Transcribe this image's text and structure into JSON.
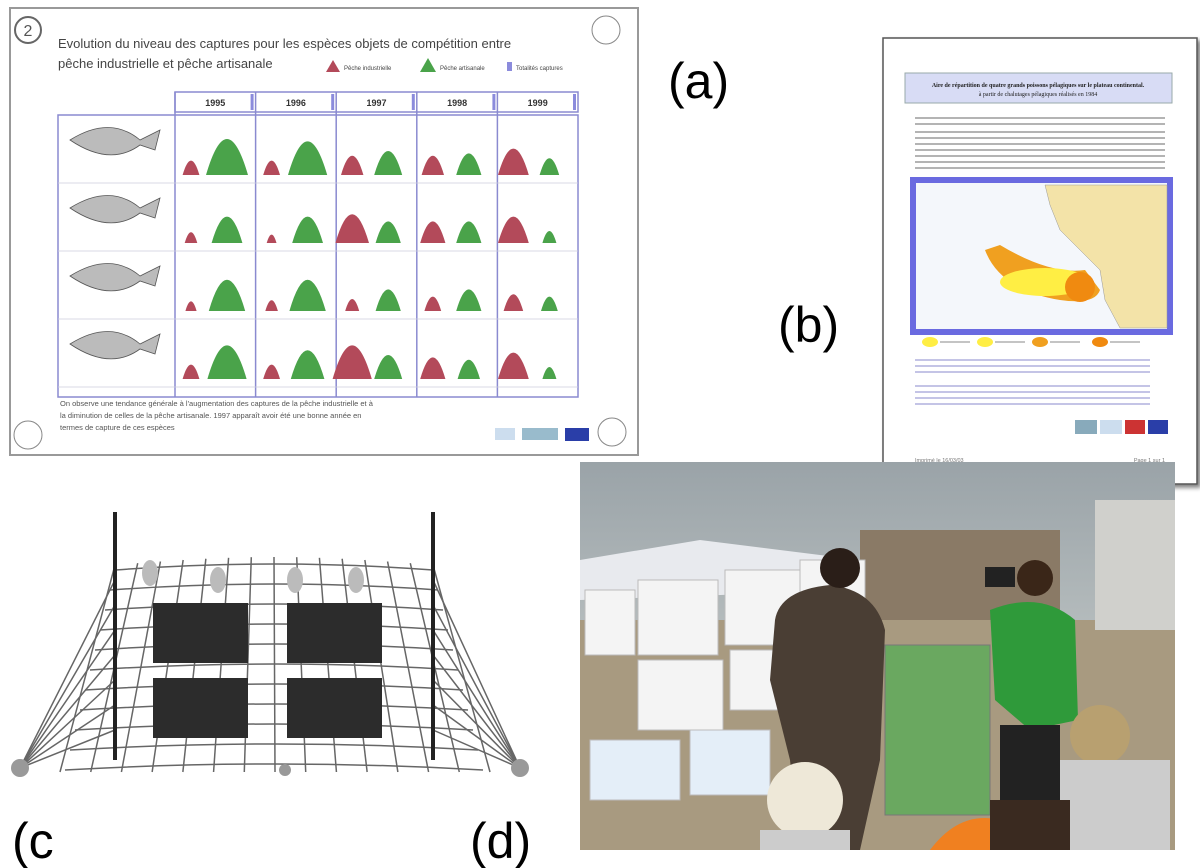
{
  "labels": {
    "a": "(a)",
    "b": "(b)",
    "c": "(c",
    "d": "(d)"
  },
  "panel_a": {
    "number": "2",
    "title_line1": "Evolution du niveau des captures pour les espèces objets de compétition entre",
    "title_line2": "pêche industrielle et pêche artisanale",
    "legend": [
      "Pêche industrielle",
      "Pêche artisanale",
      "Totalités captures"
    ],
    "years": [
      "1995",
      "1996",
      "1997",
      "1998",
      "1999"
    ],
    "caption": [
      "On observe une tendance générale à l'augmentation des captures de la pêche industrielle et à",
      "la diminution de celles de la pêche artisanale. 1997 apparaît avoir été une bonne année en",
      "termes de capture de ces espèces"
    ]
  },
  "panel_b": {
    "title": "Aire de répartition de quatre grands poissons pélagiques sur le plateau continental.",
    "subtitle": "à partir de chalutages pélagiques réalisés en 1984",
    "footer_left": "Imprimé le 16/03/03",
    "footer_right": "Page 1 sur 1"
  }
}
